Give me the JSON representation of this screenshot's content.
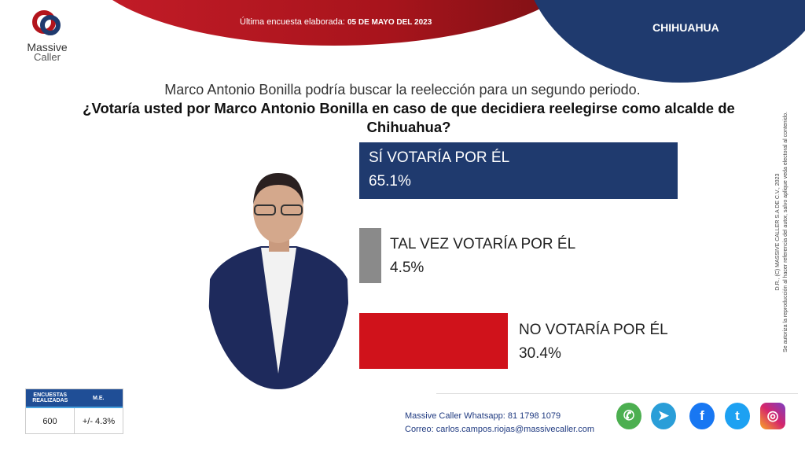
{
  "header": {
    "date_label": "Última encuesta elaborada:",
    "date_value": "05 DE MAYO DEL 2023",
    "state": "CHIHUAHUA"
  },
  "logo": {
    "line1": "Massive",
    "line2": "Caller"
  },
  "question": {
    "intro": "Marco Antonio Bonilla podría buscar la reelección para un segundo periodo.",
    "text": "¿Votaría usted por Marco Antonio Bonilla en caso de que decidiera reelegirse como alcalde de Chihuahua?"
  },
  "chart_data": {
    "type": "bar",
    "orientation": "horizontal",
    "categories": [
      "SÍ VOTARÍA POR ÉL",
      "TAL VEZ VOTARÍA POR ÉL",
      "NO VOTARÍA POR ÉL"
    ],
    "values": [
      65.1,
      4.5,
      30.4
    ],
    "value_labels": [
      "65.1%",
      "4.5%",
      "30.4%"
    ],
    "colors": [
      "#1f3a6e",
      "#8a8a8a",
      "#d0121b"
    ]
  },
  "legal": {
    "line1": "D.R., (C) MASSIVE CALLER S.A DE C.V., 2023",
    "line2": "Se autoriza la reproducción al hacer referencia del autor, salvo aplique veda electoral al contenido."
  },
  "stats": {
    "h1": "ENCUESTAS REALIZADAS",
    "h2": "M.E.",
    "v1": "600",
    "v2": "+/- 4.3%"
  },
  "contact": {
    "whatsapp": "Massive Caller Whatsapp: 81 1798 1079",
    "email": "Correo: carlos.campos.riojas@massivecaller.com"
  },
  "social": [
    {
      "name": "whatsapp",
      "color": "#4caf50"
    },
    {
      "name": "telegram",
      "color": "#2a9ed8"
    },
    {
      "name": "facebook",
      "color": "#1877f2"
    },
    {
      "name": "twitter",
      "color": "#1da1f2"
    },
    {
      "name": "instagram",
      "color": "#d6266b"
    }
  ]
}
